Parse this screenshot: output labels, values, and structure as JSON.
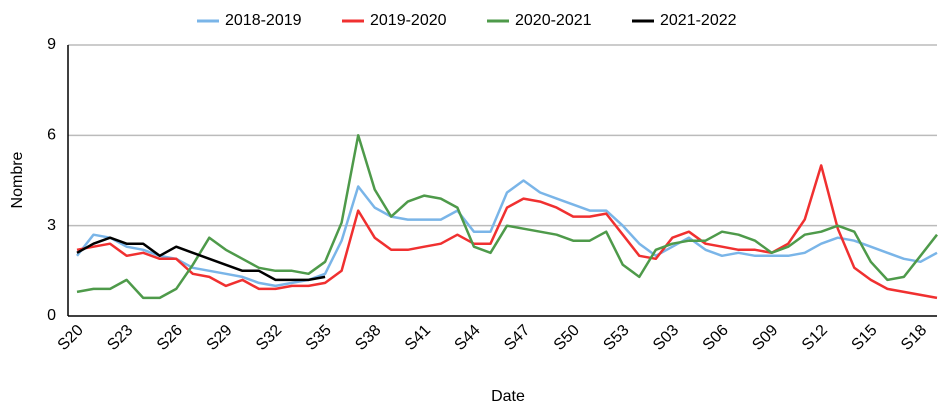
{
  "chart_data": {
    "type": "line",
    "x_label": "Date",
    "y_label": "Nombre",
    "categories": [
      "S20",
      null,
      null,
      "S23",
      null,
      null,
      "S26",
      null,
      null,
      "S29",
      null,
      null,
      "S32",
      null,
      null,
      "S35",
      null,
      null,
      "S38",
      null,
      null,
      "S41",
      null,
      null,
      "S44",
      null,
      null,
      "S47",
      null,
      null,
      "S50",
      null,
      null,
      "S53",
      null,
      null,
      "S03",
      null,
      null,
      "S06",
      null,
      null,
      "S09",
      null,
      null,
      "S12",
      null,
      null,
      "S15",
      null,
      null,
      "S18",
      null
    ],
    "series": [
      {
        "name": "2018-2019",
        "color": "#7ab5e8",
        "values": [
          2.0,
          2.7,
          2.6,
          2.3,
          2.2,
          2.0,
          1.9,
          1.6,
          1.5,
          1.4,
          1.3,
          1.1,
          1.0,
          1.1,
          1.2,
          1.4,
          2.5,
          4.3,
          3.6,
          3.3,
          3.2,
          3.2,
          3.2,
          3.5,
          2.8,
          2.8,
          4.1,
          4.5,
          4.1,
          3.9,
          3.7,
          3.5,
          3.5,
          3.0,
          2.4,
          2.0,
          2.3,
          2.6,
          2.2,
          2.0,
          2.1,
          2.0,
          2.0,
          2.0,
          2.1,
          2.4,
          2.6,
          2.5,
          2.3,
          2.1,
          1.9,
          1.8,
          2.1
        ]
      },
      {
        "name": "2019-2020",
        "color": "#f03030",
        "values": [
          2.2,
          2.3,
          2.4,
          2.0,
          2.1,
          1.9,
          1.9,
          1.4,
          1.3,
          1.0,
          1.2,
          0.9,
          0.9,
          1.0,
          1.0,
          1.1,
          1.5,
          3.5,
          2.6,
          2.2,
          2.2,
          2.3,
          2.4,
          2.7,
          2.4,
          2.4,
          3.6,
          3.9,
          3.8,
          3.6,
          3.3,
          3.3,
          3.4,
          2.7,
          2.0,
          1.9,
          2.6,
          2.8,
          2.4,
          2.3,
          2.2,
          2.2,
          2.1,
          2.4,
          3.2,
          5.0,
          2.9,
          1.6,
          1.2,
          0.9,
          0.8,
          0.7,
          0.6
        ]
      },
      {
        "name": "2020-2021",
        "color": "#4e9a4a",
        "values": [
          0.8,
          0.9,
          0.9,
          1.2,
          0.6,
          0.6,
          0.9,
          1.7,
          2.6,
          2.2,
          1.9,
          1.6,
          1.5,
          1.5,
          1.4,
          1.8,
          3.1,
          6.0,
          4.2,
          3.3,
          3.8,
          4.0,
          3.9,
          3.6,
          2.3,
          2.1,
          3.0,
          2.9,
          2.8,
          2.7,
          2.5,
          2.5,
          2.8,
          1.7,
          1.3,
          2.2,
          2.4,
          2.5,
          2.5,
          2.8,
          2.7,
          2.5,
          2.1,
          2.3,
          2.7,
          2.8,
          3.0,
          2.8,
          1.8,
          1.2,
          1.3,
          2.0,
          2.7
        ]
      },
      {
        "name": "2021-2022",
        "color": "#000000",
        "values": [
          2.1,
          2.4,
          2.6,
          2.4,
          2.4,
          2.0,
          2.3,
          2.1,
          1.9,
          1.7,
          1.5,
          1.5,
          1.2,
          1.2,
          1.2,
          1.3,
          null,
          null,
          null,
          null,
          null,
          null,
          null,
          null,
          null,
          null,
          null,
          null,
          null,
          null,
          null,
          null,
          null,
          null,
          null,
          null,
          null,
          null,
          null,
          null,
          null,
          null,
          null,
          null,
          null,
          null,
          null,
          null,
          null,
          null,
          null,
          null,
          null
        ]
      }
    ],
    "ylim": [
      0,
      9
    ],
    "yticks": [
      0,
      3,
      6,
      9
    ],
    "grid": true,
    "legend": "top"
  }
}
